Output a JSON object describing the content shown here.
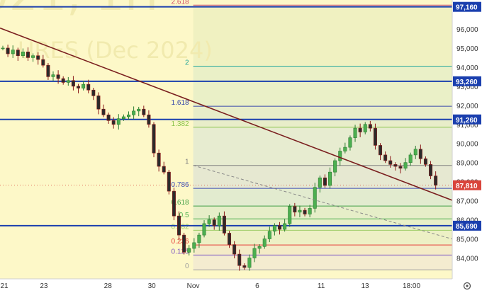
{
  "chart_data": {
    "type": "candlestick",
    "watermark": {
      "symbol_partial": "021, 1H",
      "name_partial": "URES (Dec 2024)"
    },
    "y_axis": {
      "ticks": [
        84000,
        85000,
        86000,
        87000,
        88000,
        89000,
        90000,
        91000,
        92000,
        93000,
        94000,
        95000,
        96000
      ],
      "tick_labels": [
        "84,000",
        "85,000",
        "86,000",
        "87,000",
        "88,000",
        "89,000",
        "90,000",
        "91,000",
        "92,000",
        "93,000",
        "94,000",
        "95,000",
        "96,000"
      ],
      "range": [
        83200,
        97600
      ]
    },
    "x_axis": {
      "ticks": [
        {
          "label": "21",
          "bar": 0
        },
        {
          "label": "23",
          "bar": 35
        },
        {
          "label": "28",
          "bar": 86
        },
        {
          "label": "30",
          "bar": 121
        },
        {
          "label": "Nov",
          "bar": 154
        },
        {
          "label": "6",
          "bar": 205
        },
        {
          "label": "11",
          "bar": 256
        },
        {
          "label": "13",
          "bar": 291
        },
        {
          "label": "18:00",
          "bar": 328
        }
      ]
    },
    "price_levels": [
      {
        "label": "97,160",
        "value": 97160
      },
      {
        "label": "93,260",
        "value": 93260
      },
      {
        "label": "91,260",
        "value": 91260
      },
      {
        "label": "85,690",
        "value": 85690
      }
    ],
    "current_price": {
      "label": "87,810",
      "value": 87810
    },
    "fibonacci": {
      "start_bar": 154,
      "levels": [
        {
          "label": "2.618",
          "value": 97250,
          "color": "#d4506a"
        },
        {
          "label": "2",
          "value": 94050,
          "color": "#26a69a"
        },
        {
          "label": "1.618",
          "value": 91950,
          "color": "#3949ab"
        },
        {
          "label": "1.382",
          "value": 90850,
          "color": "#8bc34a"
        },
        {
          "label": "1",
          "value": 88850,
          "color": "#808080"
        },
        {
          "label": "0.786",
          "value": 87650,
          "color": "#3f51b5"
        },
        {
          "label": "0.618",
          "value": 86720,
          "color": "#43a047"
        },
        {
          "label": "0.5",
          "value": 86050,
          "color": "#4caf50"
        },
        {
          "label": "0.382",
          "value": 85450,
          "color": "#9ccc65"
        },
        {
          "label": "0.236",
          "value": 84680,
          "color": "#e53935"
        },
        {
          "label": "0.125",
          "value": 84150,
          "color": "#7e57c2"
        },
        {
          "label": "0",
          "value": 83380,
          "color": "#9e9e9e"
        }
      ]
    },
    "trendline": {
      "bar1": 0,
      "value1": 96050,
      "bar2": 345,
      "value2": 87410
    },
    "dashed_line": {
      "bar1": 154,
      "value1": 88850,
      "bar2": 345,
      "value2": 85280
    },
    "series": [
      {
        "name": "price",
        "values": [
          95000,
          94700,
          94900,
          94600,
          94800,
          94500,
          94600,
          94400,
          94100,
          93500,
          93600,
          93400,
          93200,
          93300,
          93000,
          92900,
          93100,
          92800,
          92500,
          91800,
          91500,
          91200,
          91000,
          91300,
          91400,
          91500,
          91700,
          91800,
          91500,
          91000,
          89500,
          88800,
          88500,
          87500,
          86200,
          85200,
          84300,
          84500,
          84800,
          85200,
          85800,
          86000,
          85700,
          86200,
          85300,
          84700,
          84200,
          83600,
          83500,
          84000,
          84500,
          84600,
          85000,
          85400,
          85700,
          85500,
          85800,
          86700,
          86400,
          86500,
          86300,
          86600,
          87700,
          88200,
          87800,
          88500,
          89100,
          89600,
          89800,
          90300,
          90800,
          90600,
          91000,
          90800,
          89900,
          89400,
          89100,
          88900,
          88800,
          88700,
          89000,
          89400,
          89700,
          89200,
          88900,
          88300,
          87810
        ]
      }
    ],
    "x_label": "",
    "y_label": ""
  }
}
